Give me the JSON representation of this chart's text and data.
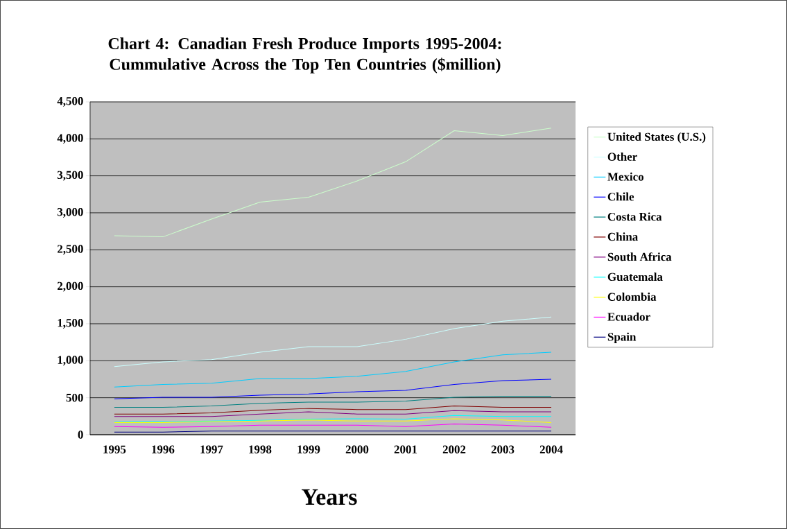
{
  "chart_data": {
    "type": "line",
    "title": "Chart 4: Canadian Fresh Produce Imports 1995-2004: Cummulative Across the Top Ten Countries ($million)",
    "xlabel": "Years",
    "categories": [
      "1995",
      "1996",
      "1997",
      "1998",
      "1999",
      "2000",
      "2001",
      "2002",
      "2003",
      "2004"
    ],
    "ylim": [
      0,
      4500
    ],
    "yticks": [
      0,
      500,
      {
        "value": 1000,
        "label": "1,000"
      },
      {
        "value": 1500,
        "label": "1,500"
      },
      {
        "value": 2000,
        "label": "2,000"
      },
      {
        "value": 2500,
        "label": "2,500"
      },
      {
        "value": 3000,
        "label": "3,000"
      },
      {
        "value": 3500,
        "label": "3,500"
      },
      {
        "value": 4000,
        "label": "4,000"
      },
      {
        "value": 4500,
        "label": "4,500"
      }
    ],
    "grid": "y",
    "legend": "right",
    "marker": "none",
    "line_style": "solid",
    "series": [
      {
        "name": "United States (U.S.)",
        "color": "#ccffcc",
        "values": [
          2690,
          2675,
          2915,
          3145,
          3210,
          3430,
          3690,
          4110,
          4045,
          4145
        ]
      },
      {
        "name": "Other",
        "color": "#ccffff",
        "values": [
          920,
          985,
          1015,
          1115,
          1190,
          1190,
          1290,
          1435,
          1535,
          1590
        ]
      },
      {
        "name": "Mexico",
        "color": "#00ccff",
        "values": [
          645,
          680,
          695,
          760,
          760,
          790,
          855,
          985,
          1080,
          1115
        ]
      },
      {
        "name": "Chile",
        "color": "#0000ff",
        "values": [
          485,
          505,
          505,
          535,
          550,
          580,
          600,
          680,
          730,
          750
        ]
      },
      {
        "name": "Costa Rica",
        "color": "#008080",
        "values": [
          370,
          370,
          390,
          425,
          440,
          440,
          455,
          505,
          520,
          520
        ]
      },
      {
        "name": "China",
        "color": "#800000",
        "values": [
          280,
          280,
          295,
          330,
          355,
          340,
          340,
          390,
          370,
          370
        ]
      },
      {
        "name": "South Africa",
        "color": "#800080",
        "values": [
          245,
          245,
          245,
          280,
          310,
          280,
          280,
          325,
          310,
          310
        ]
      },
      {
        "name": "Guatemala",
        "color": "#00ffff",
        "values": [
          170,
          175,
          185,
          195,
          210,
          215,
          210,
          260,
          245,
          245
        ]
      },
      {
        "name": "Colombia",
        "color": "#ffff00",
        "values": [
          165,
          165,
          175,
          185,
          200,
          185,
          185,
          215,
          200,
          165
        ]
      },
      {
        "name": "Ecuador",
        "color": "#ff00ff",
        "values": [
          110,
          100,
          110,
          130,
          130,
          130,
          110,
          145,
          130,
          100
        ]
      },
      {
        "name": "Spain",
        "color": "#000080",
        "values": [
          35,
          35,
          50,
          50,
          50,
          50,
          50,
          50,
          50,
          50
        ]
      }
    ]
  }
}
